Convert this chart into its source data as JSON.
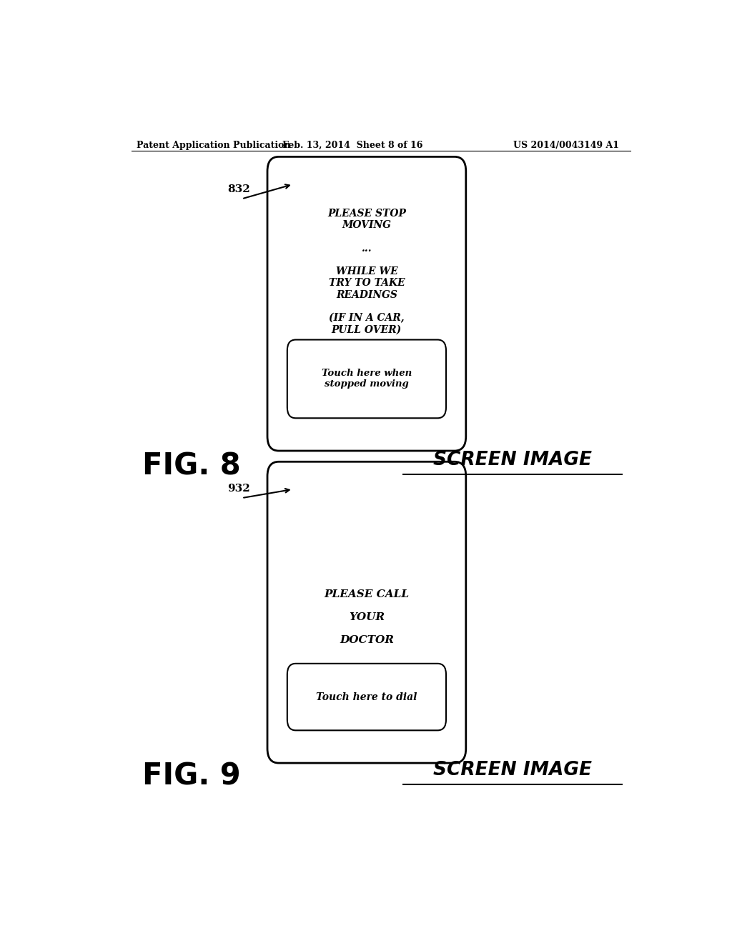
{
  "bg_color": "#ffffff",
  "header_left": "Patent Application Publication",
  "header_mid": "Feb. 13, 2014  Sheet 8 of 16",
  "header_right": "US 2014/0043149 A1",
  "fig8_label": "FIG. 8",
  "fig8_screen_label": "SCREEN IMAGE",
  "fig8_ref": "832",
  "fig8_main_text": "PLEASE STOP\nMOVING\n\n...\n\nWHILE WE\nTRY TO TAKE\nREADINGS\n\n(IF IN A CAR,\nPULL OVER)",
  "fig8_button_text": "Touch here when\nstopped moving",
  "fig9_label": "FIG. 9",
  "fig9_screen_label": "SCREEN IMAGE",
  "fig9_ref": "932",
  "fig9_main_text": "PLEASE CALL\n\nYOUR\n\nDOCTOR",
  "fig9_button_text": "Touch here to dial"
}
